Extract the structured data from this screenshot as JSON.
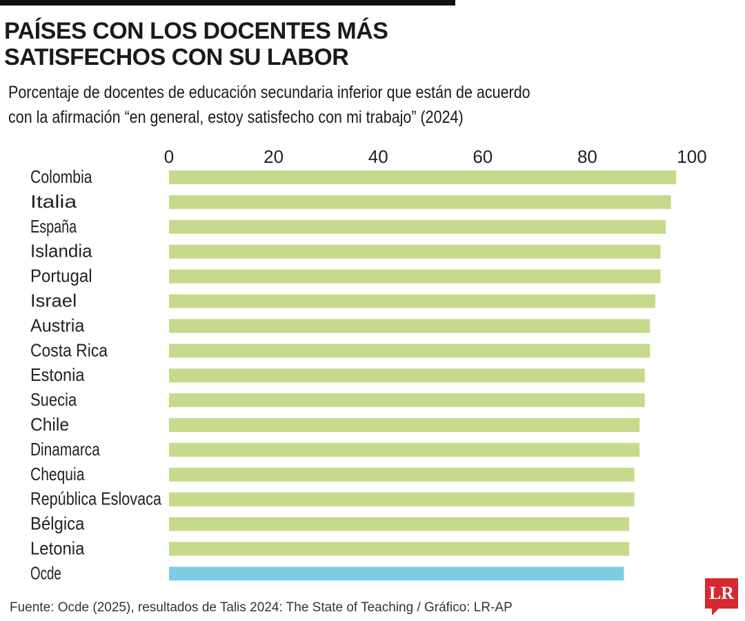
{
  "chart_data": {
    "type": "bar",
    "orientation": "horizontal",
    "title": "PAÍSES CON LOS DOCENTES MÁS SATISFECHOS CON SU LABOR",
    "subtitle": "Porcentaje de docentes de educación secundaria inferior que están de acuerdo con la afirmación “en general, estoy satisfecho con mi trabajo” (2024)",
    "categories": [
      "Colombia",
      "Italia",
      "España",
      "Islandia",
      "Portugal",
      "Israel",
      "Austria",
      "Costa Rica",
      "Estonia",
      "Suecia",
      "Chile",
      "Dinamarca",
      "Chequia",
      "República Eslovaca",
      "Bélgica",
      "Letonia",
      "Ocde"
    ],
    "values": [
      97,
      96,
      95,
      94,
      94,
      93,
      92,
      92,
      91,
      91,
      90,
      90,
      89,
      89,
      88,
      88,
      87
    ],
    "xlim": [
      0,
      100
    ],
    "xticks": [
      "0",
      "20",
      "40",
      "60",
      "80",
      "100"
    ],
    "axis_position": "top",
    "grid": false,
    "colors": {
      "default": "#c6da8b",
      "highlight": "#80cbe4"
    },
    "highlight_category": "Ocde"
  },
  "source": "Fuente:  Ocde (2025), resultados de Talis 2024: The State of Teaching / Gráfico: LR-AP",
  "logo": "LR"
}
